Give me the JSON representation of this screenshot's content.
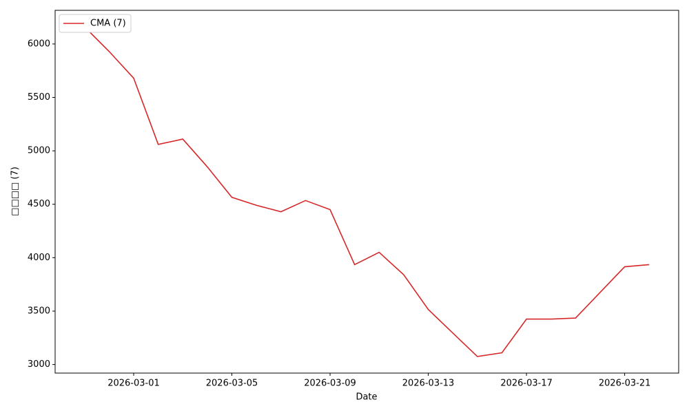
{
  "chart_data": {
    "type": "line",
    "xlabel": "Date",
    "ylabel": "□□□□ (7)",
    "x": [
      "2026-02-27",
      "2026-02-28",
      "2026-03-01",
      "2026-03-02",
      "2026-03-03",
      "2026-03-04",
      "2026-03-05",
      "2026-03-06",
      "2026-03-07",
      "2026-03-08",
      "2026-03-09",
      "2026-03-10",
      "2026-03-11",
      "2026-03-12",
      "2026-03-13",
      "2026-03-14",
      "2026-03-15",
      "2026-03-16",
      "2026-03-17",
      "2026-03-18",
      "2026-03-19",
      "2026-03-20",
      "2026-03-21",
      "2026-03-22"
    ],
    "series": [
      {
        "name": "CMA (7)",
        "color": "#d62728",
        "values": [
          6160,
          5930,
          5680,
          5060,
          5110,
          4850,
          4565,
          4490,
          4430,
          4535,
          4450,
          3935,
          4050,
          3840,
          3515,
          3295,
          3075,
          3110,
          3425,
          3425,
          3435,
          3675,
          3915,
          3935
        ]
      }
    ],
    "xlim": [
      "2026-02-25T19:12",
      "2026-03-23T04:48"
    ],
    "xticks": [
      "2026-03-01",
      "2026-03-05",
      "2026-03-09",
      "2026-03-13",
      "2026-03-17",
      "2026-03-21"
    ],
    "ylim": [
      2920,
      6315
    ],
    "yticks": [
      3000,
      3500,
      4000,
      4500,
      5000,
      5500,
      6000
    ],
    "legend": "upper left"
  }
}
